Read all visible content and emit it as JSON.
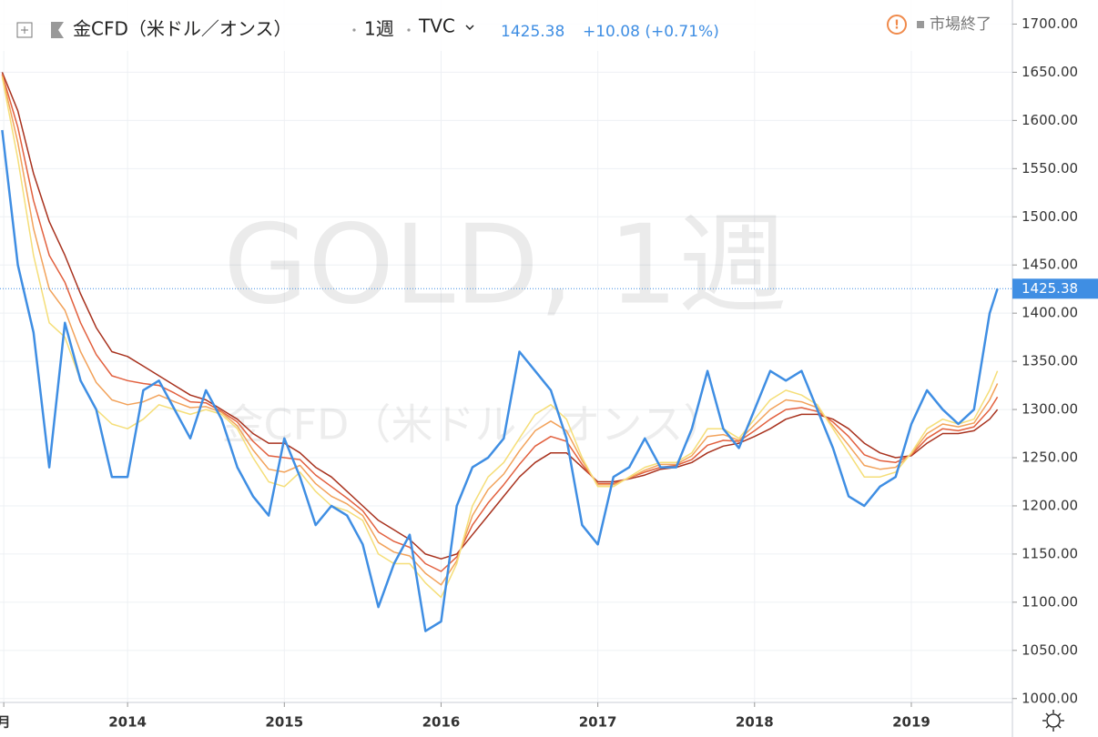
{
  "header": {
    "symbol": "金CFD（米ドル／オンス）",
    "interval": "1週",
    "source": "TVC",
    "change": "+10.08 (+0.71%)",
    "status": "市場終了"
  },
  "watermark": {
    "main": "GOLD, 1週",
    "sub": "金CFD（米ドル／オンス）"
  },
  "chart_data": {
    "type": "line",
    "x": [
      2013.2,
      2013.3,
      2013.4,
      2013.5,
      2013.6,
      2013.7,
      2013.8,
      2013.9,
      2014.0,
      2014.1,
      2014.2,
      2014.3,
      2014.4,
      2014.5,
      2014.6,
      2014.7,
      2014.8,
      2014.9,
      2015.0,
      2015.1,
      2015.2,
      2015.3,
      2015.4,
      2015.5,
      2015.6,
      2015.7,
      2015.8,
      2015.9,
      2016.0,
      2016.1,
      2016.2,
      2016.3,
      2016.4,
      2016.5,
      2016.6,
      2016.7,
      2016.8,
      2016.9,
      2017.0,
      2017.1,
      2017.2,
      2017.3,
      2017.4,
      2017.5,
      2017.6,
      2017.7,
      2017.8,
      2017.9,
      2018.0,
      2018.1,
      2018.2,
      2018.3,
      2018.4,
      2018.5,
      2018.6,
      2018.7,
      2018.8,
      2018.9,
      2019.0,
      2019.1,
      2019.2,
      2019.3,
      2019.4,
      2019.5,
      2019.55
    ],
    "series": [
      {
        "color": "#a8321e",
        "values": [
          1650,
          1610,
          1545,
          1495,
          1460,
          1420,
          1385,
          1360,
          1355,
          1345,
          1335,
          1325,
          1315,
          1310,
          1300,
          1290,
          1275,
          1265,
          1265,
          1255,
          1240,
          1230,
          1215,
          1200,
          1185,
          1175,
          1165,
          1150,
          1145,
          1150,
          1170,
          1190,
          1210,
          1230,
          1245,
          1255,
          1255,
          1240,
          1225,
          1225,
          1228,
          1232,
          1238,
          1240,
          1245,
          1255,
          1262,
          1265,
          1272,
          1280,
          1290,
          1295,
          1295,
          1290,
          1280,
          1265,
          1255,
          1250,
          1252,
          1265,
          1275,
          1275,
          1278,
          1290,
          1300
        ]
      },
      {
        "color": "#e2603e",
        "values": [
          1648,
          1593,
          1517,
          1460,
          1432,
          1390,
          1357,
          1335,
          1330,
          1327,
          1325,
          1317,
          1308,
          1307,
          1298,
          1287,
          1267,
          1252,
          1250,
          1248,
          1232,
          1220,
          1208,
          1195,
          1173,
          1163,
          1157,
          1140,
          1132,
          1147,
          1180,
          1203,
          1222,
          1243,
          1262,
          1272,
          1267,
          1243,
          1223,
          1223,
          1229,
          1235,
          1240,
          1242,
          1248,
          1263,
          1268,
          1267,
          1278,
          1290,
          1300,
          1302,
          1298,
          1287,
          1272,
          1253,
          1247,
          1245,
          1253,
          1270,
          1280,
          1278,
          1282,
          1300,
          1313
        ]
      },
      {
        "color": "#f2a25a",
        "values": [
          1647,
          1577,
          1488,
          1425,
          1403,
          1360,
          1328,
          1310,
          1305,
          1308,
          1315,
          1308,
          1302,
          1303,
          1297,
          1283,
          1258,
          1238,
          1235,
          1242,
          1223,
          1210,
          1202,
          1190,
          1162,
          1152,
          1148,
          1130,
          1118,
          1143,
          1190,
          1217,
          1233,
          1257,
          1278,
          1288,
          1278,
          1247,
          1222,
          1222,
          1229,
          1237,
          1243,
          1243,
          1252,
          1272,
          1274,
          1268,
          1284,
          1300,
          1310,
          1308,
          1302,
          1283,
          1263,
          1242,
          1238,
          1240,
          1254,
          1275,
          1285,
          1282,
          1286,
          1310,
          1327
        ]
      },
      {
        "color": "#f5de78",
        "values": [
          1645,
          1560,
          1460,
          1390,
          1375,
          1330,
          1300,
          1285,
          1280,
          1290,
          1305,
          1300,
          1295,
          1300,
          1295,
          1280,
          1250,
          1225,
          1220,
          1235,
          1215,
          1200,
          1195,
          1185,
          1150,
          1140,
          1140,
          1120,
          1105,
          1140,
          1200,
          1230,
          1245,
          1270,
          1295,
          1305,
          1290,
          1250,
          1220,
          1220,
          1230,
          1240,
          1245,
          1245,
          1255,
          1280,
          1280,
          1270,
          1290,
          1310,
          1320,
          1315,
          1305,
          1280,
          1255,
          1230,
          1230,
          1235,
          1255,
          1280,
          1290,
          1285,
          1290,
          1320,
          1340
        ]
      },
      {
        "color": "#3f8ee3",
        "values": [
          1590,
          1450,
          1380,
          1240,
          1390,
          1330,
          1300,
          1230,
          1230,
          1320,
          1330,
          1300,
          1270,
          1320,
          1290,
          1240,
          1210,
          1190,
          1270,
          1230,
          1180,
          1200,
          1190,
          1160,
          1095,
          1140,
          1170,
          1070,
          1080,
          1200,
          1240,
          1250,
          1270,
          1360,
          1340,
          1320,
          1270,
          1180,
          1160,
          1230,
          1240,
          1270,
          1240,
          1240,
          1280,
          1340,
          1280,
          1260,
          1300,
          1340,
          1330,
          1340,
          1300,
          1260,
          1210,
          1200,
          1220,
          1230,
          1285,
          1320,
          1300,
          1285,
          1300,
          1400,
          1425.38
        ]
      }
    ],
    "last_price": 1425.38,
    "xlim": [
      2013.186,
      2019.645
    ],
    "xticks": [
      {
        "value": 2013.21,
        "label": "月"
      },
      2014,
      2015,
      2016,
      2017,
      2018,
      2019
    ],
    "ylim": [
      996,
      1725
    ],
    "yticks": [
      {
        "value": 1000,
        "label": "1000.00"
      },
      {
        "value": 1050,
        "label": "1050.00"
      },
      {
        "value": 1100,
        "label": "1100.00"
      },
      {
        "value": 1150,
        "label": "1150.00"
      },
      {
        "value": 1200,
        "label": "1200.00"
      },
      {
        "value": 1250,
        "label": "1250.00"
      },
      {
        "value": 1300,
        "label": "1300.00"
      },
      {
        "value": 1350,
        "label": "1350.00"
      },
      {
        "value": 1400,
        "label": "1400.00"
      },
      {
        "value": 1450,
        "label": "1450.00"
      },
      {
        "value": 1500,
        "label": "1500.00"
      },
      {
        "value": 1550,
        "label": "1550.00"
      },
      {
        "value": 1600,
        "label": "1600.00"
      },
      {
        "value": 1650,
        "label": "1650.00"
      },
      {
        "value": 1700,
        "label": "1700.00"
      }
    ],
    "grid": true
  }
}
